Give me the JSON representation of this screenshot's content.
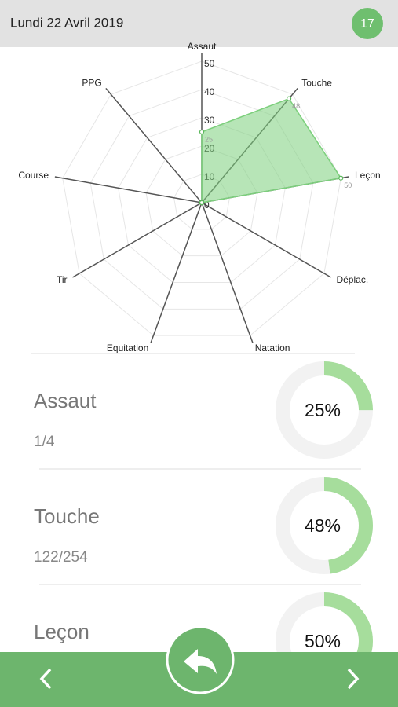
{
  "header": {
    "date": "Lundi 22 Avril 2019",
    "badge": "17"
  },
  "chart_data": {
    "type": "radar",
    "categories": [
      "Assaut",
      "Touche",
      "Leçon",
      "Déplac.",
      "Natation",
      "Equitation",
      "Tir",
      "Course",
      "PPG"
    ],
    "values": [
      25,
      48,
      50,
      0,
      0,
      0,
      0,
      0,
      0
    ],
    "color": "#7ccf7c",
    "rlim": [
      0,
      50
    ],
    "rticks": [
      0,
      10,
      20,
      30,
      40,
      50
    ],
    "grid": true
  },
  "stats": [
    {
      "name": "Assaut",
      "fraction": "1/4",
      "value": 25,
      "value_label": "25%"
    },
    {
      "name": "Touche",
      "fraction": "122/254",
      "value": 48,
      "value_label": "48%"
    },
    {
      "name": "Leçon",
      "value": 50,
      "value_label": "50%"
    }
  ]
}
